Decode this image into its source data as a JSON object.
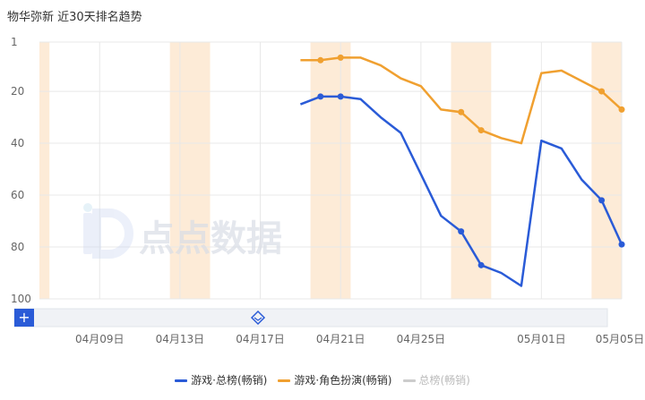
{
  "page": {
    "title": "物华弥新  近30天排名趋势",
    "watermark": "点点数据"
  },
  "colors": {
    "series_blue": "#2a5bd7",
    "series_orange": "#f0a030",
    "highlight_band": "#fdebd7",
    "grid": "#e8e8e8",
    "slider_button": "#2a5bd7"
  },
  "chart_data": {
    "type": "line",
    "y_inverted": true,
    "ylim": [
      1,
      100
    ],
    "yticks": [
      1,
      20,
      40,
      60,
      80,
      100
    ],
    "x_start_date": "2024-04-06",
    "x_end_date": "2024-05-05",
    "xtick_labels": [
      "04月09日",
      "04月13日",
      "04月17日",
      "04月21日",
      "04月25日",
      "05月01日",
      "05月05日"
    ],
    "xtick_dates": [
      "2024-04-09",
      "2024-04-13",
      "2024-04-17",
      "2024-04-21",
      "2024-04-25",
      "2024-05-01",
      "2024-05-05"
    ],
    "highlight_ranges": [
      [
        "2024-04-06",
        "2024-04-06"
      ],
      [
        "2024-04-13",
        "2024-04-14"
      ],
      [
        "2024-04-20",
        "2024-04-21"
      ],
      [
        "2024-04-27",
        "2024-04-28"
      ],
      [
        "2024-05-04",
        "2024-05-05"
      ]
    ],
    "series": [
      {
        "name": "游戏·总榜(畅销)",
        "color": "#2a5bd7",
        "points": [
          [
            "2024-04-19",
            25
          ],
          [
            "2024-04-20",
            22
          ],
          [
            "2024-04-21",
            22
          ],
          [
            "2024-04-22",
            23
          ],
          [
            "2024-04-23",
            30
          ],
          [
            "2024-04-24",
            36
          ],
          [
            "2024-04-25",
            52
          ],
          [
            "2024-04-26",
            68
          ],
          [
            "2024-04-27",
            74
          ],
          [
            "2024-04-28",
            87
          ],
          [
            "2024-04-29",
            90
          ],
          [
            "2024-04-30",
            95
          ],
          [
            "2024-05-01",
            39
          ],
          [
            "2024-05-02",
            42
          ],
          [
            "2024-05-03",
            54
          ],
          [
            "2024-05-04",
            62
          ],
          [
            "2024-05-05",
            79
          ]
        ],
        "markers": [
          "2024-04-20",
          "2024-04-21",
          "2024-04-27",
          "2024-04-28",
          "2024-05-04",
          "2024-05-05"
        ]
      },
      {
        "name": "游戏·角色扮演(畅销)",
        "color": "#f0a030",
        "points": [
          [
            "2024-04-19",
            8
          ],
          [
            "2024-04-20",
            8
          ],
          [
            "2024-04-21",
            7
          ],
          [
            "2024-04-22",
            7
          ],
          [
            "2024-04-23",
            10
          ],
          [
            "2024-04-24",
            15
          ],
          [
            "2024-04-25",
            18
          ],
          [
            "2024-04-26",
            27
          ],
          [
            "2024-04-27",
            28
          ],
          [
            "2024-04-28",
            35
          ],
          [
            "2024-04-29",
            38
          ],
          [
            "2024-04-30",
            40
          ],
          [
            "2024-05-01",
            13
          ],
          [
            "2024-05-02",
            12
          ],
          [
            "2024-05-03",
            16
          ],
          [
            "2024-05-04",
            20
          ],
          [
            "2024-05-05",
            27
          ]
        ],
        "markers": [
          "2024-04-20",
          "2024-04-21",
          "2024-04-27",
          "2024-04-28",
          "2024-05-04",
          "2024-05-05"
        ]
      },
      {
        "name": "总榜(畅销)",
        "color": "#cccccc",
        "hidden": true,
        "points": []
      }
    ],
    "legend_position": "bottom-center",
    "grid": true
  }
}
